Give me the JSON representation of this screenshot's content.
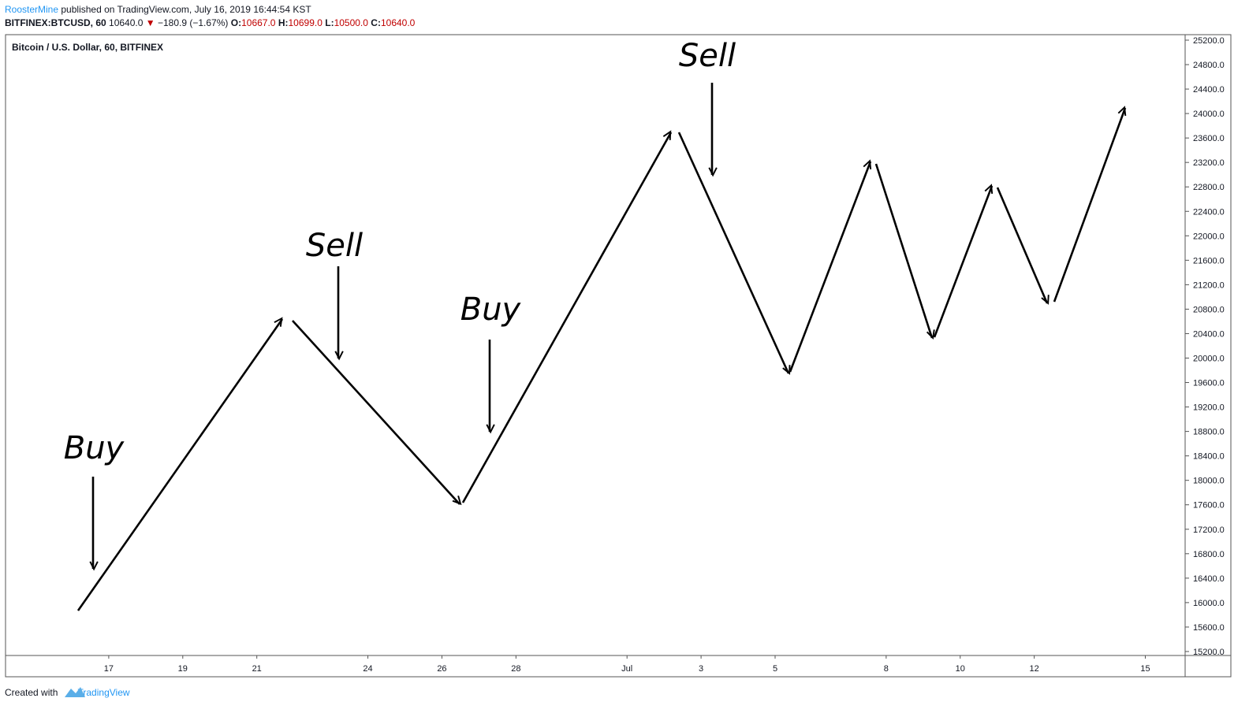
{
  "header": {
    "author": "RoosterMine",
    "published": "published on TradingView.com, July 16, 2019 16:44:54 KST",
    "symbol": "BITFINEX:BTCUSD, 60",
    "last": "10640.0",
    "change_icon": "▼",
    "change": "−180.9 (−1.67%)",
    "o_label": "O:",
    "o": "10667.0",
    "h_label": "H:",
    "h": "10699.0",
    "l_label": "L:",
    "l": "10500.0",
    "c_label": "C:",
    "c": "10640.0"
  },
  "footer": {
    "created": "Created with",
    "brand": "TradingView"
  },
  "chart_data": {
    "type": "drawing",
    "title": "Bitcoin / U.S. Dollar, 60, BITFINEX",
    "categories": [
      null,
      null,
      "17",
      null,
      "19",
      null,
      "21",
      null,
      null,
      "24",
      null,
      "26",
      null,
      "28",
      null,
      null,
      "Jul",
      null,
      "3",
      null,
      "5",
      null,
      null,
      "8",
      null,
      "10",
      null,
      "12",
      null,
      null,
      "15",
      null
    ],
    "ylim": [
      15135,
      25290
    ],
    "yticks": [
      {
        "value": 15200,
        "label": "15200.0"
      },
      {
        "value": 15600,
        "label": "15600.0"
      },
      {
        "value": 16000,
        "label": "16000.0"
      },
      {
        "value": 16400,
        "label": "16400.0"
      },
      {
        "value": 16800,
        "label": "16800.0"
      },
      {
        "value": 17200,
        "label": "17200.0"
      },
      {
        "value": 17600,
        "label": "17600.0"
      },
      {
        "value": 18000,
        "label": "18000.0"
      },
      {
        "value": 18400,
        "label": "18400.0"
      },
      {
        "value": 18800,
        "label": "18800.0"
      },
      {
        "value": 19200,
        "label": "19200.0"
      },
      {
        "value": 19600,
        "label": "19600.0"
      },
      {
        "value": 20000,
        "label": "20000.0"
      },
      {
        "value": 20400,
        "label": "20400.0"
      },
      {
        "value": 20800,
        "label": "20800.0"
      },
      {
        "value": 21200,
        "label": "21200.0"
      },
      {
        "value": 21600,
        "label": "21600.0"
      },
      {
        "value": 22000,
        "label": "22000.0"
      },
      {
        "value": 22400,
        "label": "22400.0"
      },
      {
        "value": 22800,
        "label": "22800.0"
      },
      {
        "value": 23200,
        "label": "23200.0"
      },
      {
        "value": 23600,
        "label": "23600.0"
      },
      {
        "value": 24000,
        "label": "24000.0"
      },
      {
        "value": 24400,
        "label": "24400.0"
      },
      {
        "value": 24800,
        "label": "24800.0"
      },
      {
        "value": 25200,
        "label": "25200.0"
      }
    ],
    "annotations": [
      "Buy",
      "Sell",
      "Buy",
      "Sell"
    ]
  }
}
